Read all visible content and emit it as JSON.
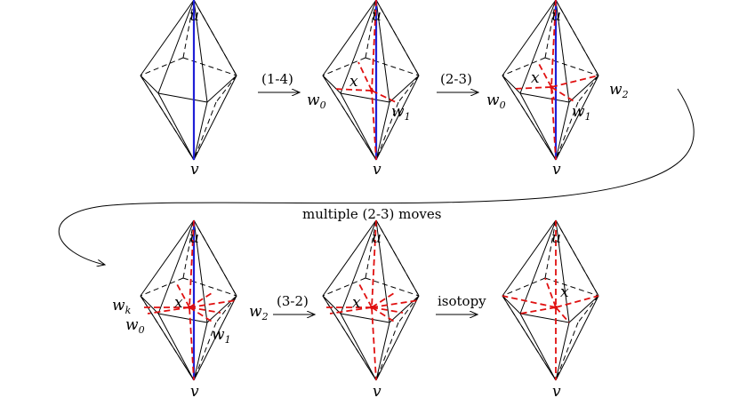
{
  "labels": {
    "u": "u",
    "v": "v",
    "x": "x",
    "w0_base": "w",
    "w0_sub": "0",
    "w1_base": "w",
    "w1_sub": "1",
    "w2_base": "w",
    "w2_sub": "2",
    "wk_base": "w",
    "wk_sub": "k"
  },
  "moves": {
    "m1": "(1-4)",
    "m2": "(2-3)",
    "m3": "multiple (2-3) moves",
    "m4": "(3-2)",
    "m5": "isotopy"
  },
  "colors": {
    "edge": "#000000",
    "axis": "#1f1fd6",
    "new_edges": "#e01010"
  },
  "icons": [
    "arrow-right-icon",
    "curved-arrow-icon"
  ]
}
